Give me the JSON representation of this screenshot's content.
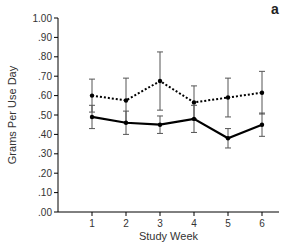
{
  "chart_data": {
    "type": "line",
    "title": "a",
    "x_label": "Study Week",
    "y_label": "Grams Per Use Day",
    "x": [
      1,
      2,
      3,
      4,
      5,
      6
    ],
    "xlim": [
      0,
      6.5
    ],
    "xticks": [
      1,
      2,
      3,
      4,
      5,
      6
    ],
    "ylim": [
      0,
      1
    ],
    "yticks": [
      {
        "value": 0,
        "label": ".00"
      },
      {
        "value": 0.1,
        "label": ".10"
      },
      {
        "value": 0.2,
        "label": ".20"
      },
      {
        "value": 0.3,
        "label": ".30"
      },
      {
        "value": 0.4,
        "label": ".40"
      },
      {
        "value": 0.5,
        "label": ".50"
      },
      {
        "value": 0.6,
        "label": ".60"
      },
      {
        "value": 0.7,
        "label": ".70"
      },
      {
        "value": 0.8,
        "label": ".80"
      },
      {
        "value": 0.9,
        "label": ".90"
      },
      {
        "value": 1,
        "label": "1.00"
      }
    ],
    "grid": false,
    "series": [
      {
        "color": "#000000",
        "line_style": "dotted",
        "marker": "circle",
        "values": [
          0.6,
          0.575,
          0.675,
          0.565,
          0.59,
          0.615
        ],
        "errors": [
          0.085,
          0.115,
          0.15,
          0.085,
          0.1,
          0.11
        ]
      },
      {
        "color": "#000000",
        "line_style": "solid",
        "marker": "circle",
        "values": [
          0.49,
          0.46,
          0.45,
          0.48,
          0.38,
          0.45
        ],
        "errors": [
          0.06,
          0.06,
          0.045,
          0.07,
          0.05,
          0.06
        ]
      }
    ]
  }
}
